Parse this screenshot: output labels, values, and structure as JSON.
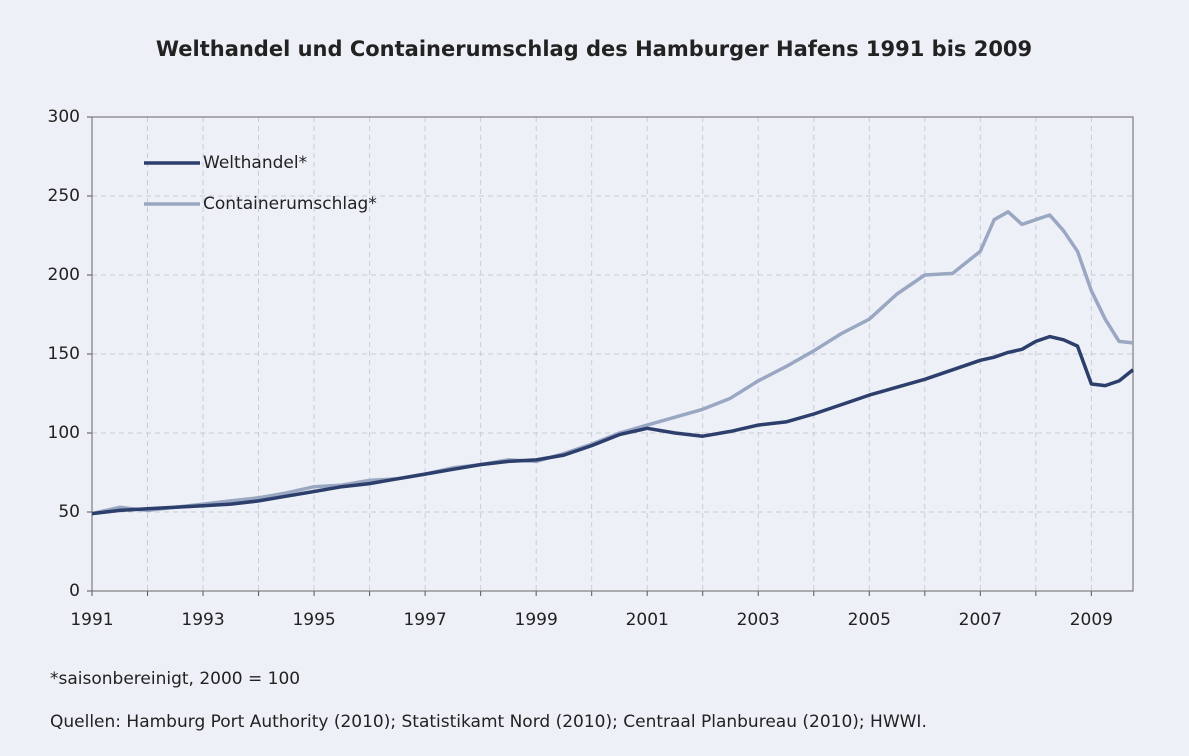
{
  "chart_data": {
    "type": "line",
    "title": "Welthandel und Containerumschlag des Hamburger Hafens 1991 bis 2009",
    "note": "*saisonbereinigt, 2000 = 100",
    "source": "Quellen: Hamburg Port Authority (2010); Statistikamt Nord (2010); Centraal Planbureau (2010); HWWI.",
    "x": [
      1991,
      1991.5,
      1992,
      1992.5,
      1993,
      1993.5,
      1994,
      1994.5,
      1995,
      1995.5,
      1996,
      1996.5,
      1997,
      1997.5,
      1998,
      1998.5,
      1999,
      1999.5,
      2000,
      2000.5,
      2001,
      2001.5,
      2002,
      2002.5,
      2003,
      2003.5,
      2004,
      2004.5,
      2005,
      2005.5,
      2006,
      2006.5,
      2007,
      2007.25,
      2007.5,
      2007.75,
      2008,
      2008.25,
      2008.5,
      2008.75,
      2009,
      2009.25,
      2009.5,
      2009.75
    ],
    "series": [
      {
        "name": "Welthandel*",
        "color": "#2c3e6b",
        "values": [
          49,
          51,
          52,
          53,
          54,
          55,
          57,
          60,
          63,
          66,
          68,
          71,
          74,
          77,
          80,
          82,
          83,
          86,
          92,
          99,
          103,
          100,
          98,
          101,
          105,
          107,
          112,
          118,
          124,
          129,
          134,
          140,
          146,
          148,
          151,
          153,
          158,
          161,
          159,
          155,
          131,
          130,
          133,
          140
        ]
      },
      {
        "name": "Containerumschlag*",
        "color": "#9aa7c3",
        "values": [
          49,
          53,
          51,
          53,
          55,
          57,
          59,
          62,
          66,
          67,
          70,
          71,
          74,
          78,
          80,
          83,
          82,
          87,
          93,
          100,
          105,
          110,
          115,
          122,
          133,
          142,
          152,
          163,
          172,
          188,
          200,
          201,
          215,
          235,
          240,
          232,
          235,
          238,
          228,
          215,
          190,
          172,
          158,
          157
        ]
      }
    ],
    "xlim": [
      1991,
      2009.75
    ],
    "xticks": [
      1991,
      1993,
      1995,
      1997,
      1999,
      2001,
      2003,
      2005,
      2007,
      2009
    ],
    "xminor_ticks": [
      1992,
      1994,
      1996,
      1998,
      2000,
      2002,
      2004,
      2006,
      2008
    ],
    "ylim": [
      0,
      300
    ],
    "yticks": [
      0,
      50,
      100,
      150,
      200,
      250,
      300
    ],
    "grid": true,
    "legend": "top-left"
  }
}
